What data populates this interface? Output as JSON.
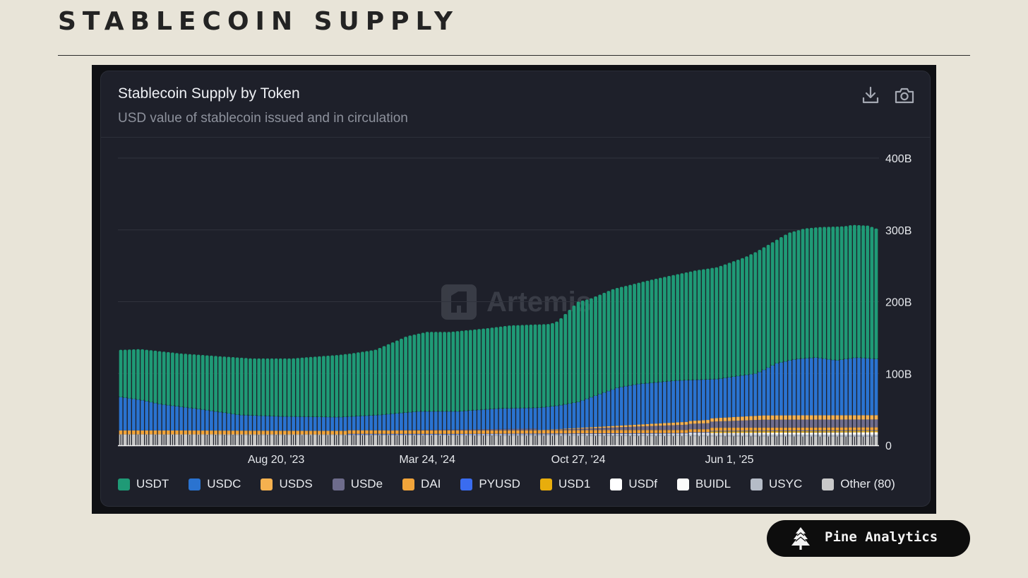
{
  "page": {
    "title": "STABLECOIN SUPPLY"
  },
  "card": {
    "title": "Stablecoin Supply by Token",
    "subtitle": "USD value of stablecoin issued and in circulation",
    "watermark": "Artemis"
  },
  "toolbar": {
    "download_icon": "download-icon",
    "camera_icon": "camera-icon"
  },
  "brand": {
    "name": "Pine Analytics",
    "icon": "pine-tree-icon"
  },
  "colors": {
    "USDT": "#1f9a76",
    "USDC": "#2a73d0",
    "USDS": "#f6b14f",
    "USDe": "#6e6c8c",
    "DAI": "#f1a43a",
    "PYUSD": "#3a6cf0",
    "USD1": "#e8ad0c",
    "USDf": "#ffffff",
    "BUIDL": "#fbfbfb",
    "USYC": "#b5bcc7",
    "Other": "#c9c9c9"
  },
  "chart_data": {
    "type": "bar",
    "stacked": true,
    "title": "Stablecoin Supply by Token",
    "subtitle": "USD value of stablecoin issued and in circulation",
    "y_axis_side": "right",
    "ylim": [
      0,
      400
    ],
    "y_unit": "B",
    "y_ticks": [
      "0",
      "100B",
      "200B",
      "300B",
      "400B"
    ],
    "x_tick_labels": [
      "Aug 20, '23",
      "Mar 24, '24",
      "Oct 27, '24",
      "Jun 1, '25"
    ],
    "x_tick_bar_index": [
      36,
      71,
      106,
      141
    ],
    "bar_count": 176,
    "legend_position": "bottom",
    "legend": [
      "USDT",
      "USDC",
      "USDS",
      "USDe",
      "DAI",
      "PYUSD",
      "USD1",
      "USDf",
      "BUIDL",
      "USYC",
      "Other (80)"
    ],
    "total_keypoints": [
      [
        0,
        133
      ],
      [
        5,
        134
      ],
      [
        15,
        128
      ],
      [
        25,
        124
      ],
      [
        33,
        121
      ],
      [
        43,
        121
      ],
      [
        50,
        124
      ],
      [
        55,
        126
      ],
      [
        58,
        128
      ],
      [
        64,
        133
      ],
      [
        67,
        140
      ],
      [
        72,
        152
      ],
      [
        77,
        158
      ],
      [
        83,
        158
      ],
      [
        92,
        163
      ],
      [
        98,
        167
      ],
      [
        108,
        169
      ],
      [
        110,
        173
      ],
      [
        115,
        200
      ],
      [
        118,
        204
      ],
      [
        124,
        218
      ],
      [
        133,
        230
      ],
      [
        138,
        236
      ],
      [
        145,
        244
      ],
      [
        150,
        248
      ],
      [
        157,
        262
      ],
      [
        160,
        270
      ],
      [
        164,
        283
      ],
      [
        168,
        296
      ],
      [
        172,
        302
      ],
      [
        176,
        304
      ],
      [
        182,
        305
      ],
      [
        184,
        307
      ],
      [
        188,
        306
      ],
      [
        190,
        302
      ]
    ],
    "usdc_keypoints": [
      [
        0,
        67
      ],
      [
        5,
        63
      ],
      [
        10,
        57
      ],
      [
        20,
        50
      ],
      [
        30,
        42
      ],
      [
        40,
        40
      ],
      [
        55,
        39
      ],
      [
        65,
        42
      ],
      [
        75,
        47
      ],
      [
        85,
        47
      ],
      [
        95,
        51
      ],
      [
        105,
        52
      ],
      [
        110,
        55
      ],
      [
        115,
        60
      ],
      [
        120,
        70
      ],
      [
        125,
        80
      ],
      [
        130,
        85
      ],
      [
        140,
        90
      ],
      [
        150,
        92
      ],
      [
        160,
        100
      ],
      [
        165,
        114
      ],
      [
        170,
        120
      ],
      [
        175,
        122
      ],
      [
        180,
        118
      ],
      [
        185,
        122
      ],
      [
        190,
        120
      ]
    ],
    "series_order": [
      "Other",
      "USYC",
      "BUIDL",
      "USDf",
      "USD1",
      "PYUSD",
      "DAI",
      "USDe",
      "USDS",
      "USDC",
      "USDT"
    ],
    "note_sample": "values in billions USD, interpolated per weekly bar between keypoints"
  }
}
